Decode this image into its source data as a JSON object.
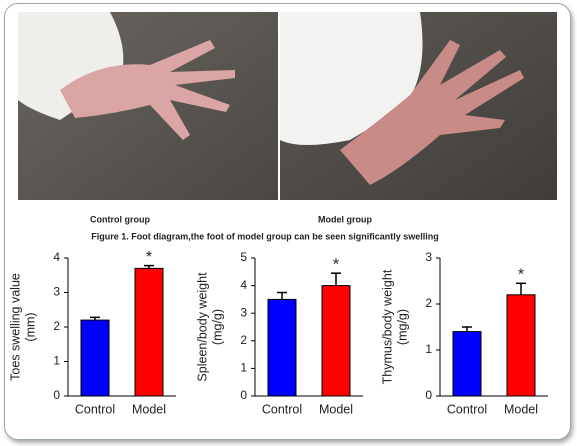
{
  "photos": [
    {
      "caption": "Control group"
    },
    {
      "caption": "Model group"
    }
  ],
  "figure_caption": "Figure 1. Foot diagram,the foot of model group can be seen significantly swelling",
  "chart_data": [
    {
      "type": "bar",
      "y_label": [
        "Toes swelling value",
        "(mm)"
      ],
      "categories": [
        "Control",
        "Model"
      ],
      "values": [
        2.2,
        3.7
      ],
      "errors": [
        0.08,
        0.08
      ],
      "colors": [
        "#0000ff",
        "#ff0000"
      ],
      "ylim": [
        0,
        4
      ],
      "yticks": [
        0,
        1,
        2,
        3,
        4
      ],
      "annotations": [
        {
          "category": "Model",
          "text": "*"
        }
      ]
    },
    {
      "type": "bar",
      "y_label": [
        "Spleen/body weight",
        "(mg/g)"
      ],
      "categories": [
        "Control",
        "Model"
      ],
      "values": [
        3.5,
        4.0
      ],
      "errors": [
        0.25,
        0.45
      ],
      "colors": [
        "#0000ff",
        "#ff0000"
      ],
      "ylim": [
        0,
        5
      ],
      "yticks": [
        0,
        1,
        2,
        3,
        4,
        5
      ],
      "annotations": [
        {
          "category": "Model",
          "text": "*"
        }
      ]
    },
    {
      "type": "bar",
      "y_label": [
        "Thymus/body weight",
        "(mg/g)"
      ],
      "categories": [
        "Control",
        "Model"
      ],
      "values": [
        1.4,
        2.2
      ],
      "errors": [
        0.1,
        0.25
      ],
      "colors": [
        "#0000ff",
        "#ff0000"
      ],
      "ylim": [
        0,
        3
      ],
      "yticks": [
        0,
        1,
        2,
        3
      ],
      "annotations": [
        {
          "category": "Model",
          "text": "*"
        }
      ]
    }
  ]
}
